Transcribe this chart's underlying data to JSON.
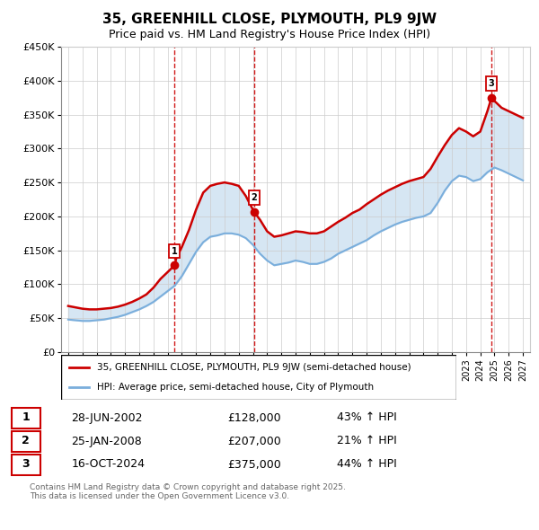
{
  "title": "35, GREENHILL CLOSE, PLYMOUTH, PL9 9JW",
  "subtitle": "Price paid vs. HM Land Registry's House Price Index (HPI)",
  "ylim": [
    0,
    450000
  ],
  "yticks": [
    0,
    50000,
    100000,
    150000,
    200000,
    250000,
    300000,
    350000,
    400000,
    450000
  ],
  "ytick_labels": [
    "£0",
    "£50K",
    "£100K",
    "£150K",
    "£200K",
    "£250K",
    "£300K",
    "£350K",
    "£400K",
    "£450K"
  ],
  "xlim_start": 1994.5,
  "xlim_end": 2027.5,
  "legend_house": "35, GREENHILL CLOSE, PLYMOUTH, PL9 9JW (semi-detached house)",
  "legend_hpi": "HPI: Average price, semi-detached house, City of Plymouth",
  "sale_points": [
    {
      "label": "1",
      "date": "28-JUN-2002",
      "price": 128000,
      "hpi_pct": "43% ↑ HPI",
      "year": 2002.49
    },
    {
      "label": "2",
      "date": "25-JAN-2008",
      "price": 207000,
      "hpi_pct": "21% ↑ HPI",
      "year": 2008.07
    },
    {
      "label": "3",
      "date": "16-OCT-2024",
      "price": 375000,
      "hpi_pct": "44% ↑ HPI",
      "year": 2024.79
    }
  ],
  "copyright": "Contains HM Land Registry data © Crown copyright and database right 2025.\nThis data is licensed under the Open Government Licence v3.0.",
  "house_color": "#cc0000",
  "hpi_color": "#7aaedc",
  "shade_color": "#cce0f0",
  "house_data_x": [
    1995.0,
    1995.5,
    1996.0,
    1996.5,
    1997.0,
    1997.5,
    1998.0,
    1998.5,
    1999.0,
    1999.5,
    2000.0,
    2000.5,
    2001.0,
    2001.5,
    2002.0,
    2002.49,
    2002.6,
    2003.0,
    2003.5,
    2004.0,
    2004.5,
    2005.0,
    2005.5,
    2006.0,
    2006.5,
    2007.0,
    2007.5,
    2008.07,
    2008.5,
    2009.0,
    2009.5,
    2010.0,
    2010.5,
    2011.0,
    2011.5,
    2012.0,
    2012.5,
    2013.0,
    2013.5,
    2014.0,
    2014.5,
    2015.0,
    2015.5,
    2016.0,
    2016.5,
    2017.0,
    2017.5,
    2018.0,
    2018.5,
    2019.0,
    2019.5,
    2020.0,
    2020.5,
    2021.0,
    2021.5,
    2022.0,
    2022.5,
    2023.0,
    2023.5,
    2024.0,
    2024.5,
    2024.79,
    2025.0,
    2025.5,
    2026.0,
    2026.5,
    2027.0
  ],
  "house_data_y": [
    68000,
    66000,
    64000,
    63000,
    63000,
    64000,
    65000,
    67000,
    70000,
    74000,
    79000,
    85000,
    95000,
    108000,
    118000,
    128000,
    138000,
    155000,
    180000,
    210000,
    235000,
    245000,
    248000,
    250000,
    248000,
    245000,
    230000,
    207000,
    195000,
    178000,
    170000,
    172000,
    175000,
    178000,
    177000,
    175000,
    175000,
    178000,
    185000,
    192000,
    198000,
    205000,
    210000,
    218000,
    225000,
    232000,
    238000,
    243000,
    248000,
    252000,
    255000,
    258000,
    270000,
    288000,
    305000,
    320000,
    330000,
    325000,
    318000,
    325000,
    355000,
    375000,
    370000,
    360000,
    355000,
    350000,
    345000
  ],
  "hpi_data_x": [
    1995.0,
    1995.5,
    1996.0,
    1996.5,
    1997.0,
    1997.5,
    1998.0,
    1998.5,
    1999.0,
    1999.5,
    2000.0,
    2000.5,
    2001.0,
    2001.5,
    2002.0,
    2002.5,
    2003.0,
    2003.5,
    2004.0,
    2004.5,
    2005.0,
    2005.5,
    2006.0,
    2006.5,
    2007.0,
    2007.5,
    2008.0,
    2008.5,
    2009.0,
    2009.5,
    2010.0,
    2010.5,
    2011.0,
    2011.5,
    2012.0,
    2012.5,
    2013.0,
    2013.5,
    2014.0,
    2014.5,
    2015.0,
    2015.5,
    2016.0,
    2016.5,
    2017.0,
    2017.5,
    2018.0,
    2018.5,
    2019.0,
    2019.5,
    2020.0,
    2020.5,
    2021.0,
    2021.5,
    2022.0,
    2022.5,
    2023.0,
    2023.5,
    2024.0,
    2024.5,
    2025.0,
    2025.5,
    2026.0,
    2026.5,
    2027.0
  ],
  "hpi_data_y": [
    48000,
    47000,
    46000,
    46000,
    47000,
    48000,
    50000,
    52000,
    55000,
    59000,
    63000,
    68000,
    74000,
    82000,
    90000,
    98000,
    112000,
    130000,
    148000,
    162000,
    170000,
    172000,
    175000,
    175000,
    173000,
    168000,
    158000,
    145000,
    135000,
    128000,
    130000,
    132000,
    135000,
    133000,
    130000,
    130000,
    133000,
    138000,
    145000,
    150000,
    155000,
    160000,
    165000,
    172000,
    178000,
    183000,
    188000,
    192000,
    195000,
    198000,
    200000,
    205000,
    220000,
    238000,
    252000,
    260000,
    258000,
    252000,
    255000,
    265000,
    272000,
    268000,
    263000,
    258000,
    253000
  ]
}
